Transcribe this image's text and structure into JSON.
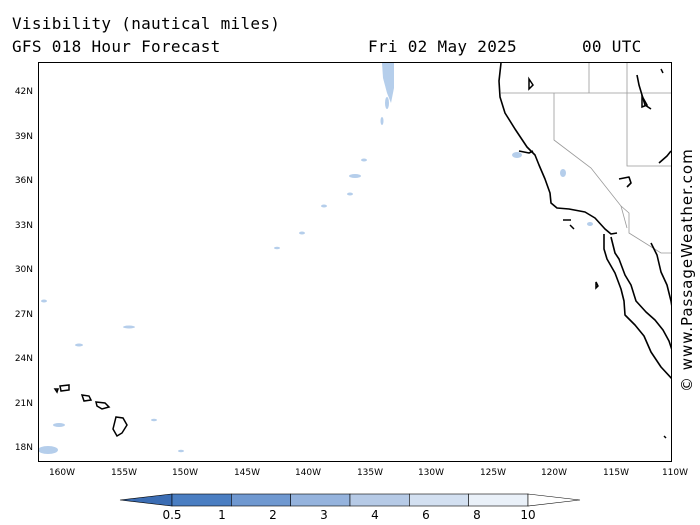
{
  "header": {
    "title": "Visibility (nautical miles)",
    "model": "GFS 018 Hour Forecast",
    "date": "Fri 02 May 2025",
    "time": "00 UTC"
  },
  "credit": "© www.PassageWeather.com",
  "map": {
    "lat_labels": [
      "42N",
      "39N",
      "36N",
      "33N",
      "30N",
      "27N",
      "24N",
      "21N",
      "18N"
    ],
    "lon_labels": [
      "160W",
      "155W",
      "150W",
      "145W",
      "140W",
      "135W",
      "130W",
      "125W",
      "120W",
      "115W",
      "110W"
    ],
    "land_border_color": "#000000",
    "state_border_color": "#999999",
    "low_visibility_color": "#a9c6e8"
  },
  "colorbar": {
    "labels": [
      "0.5",
      "1",
      "2",
      "3",
      "4",
      "6",
      "8",
      "10"
    ],
    "colors": [
      "#3b6db4",
      "#4a7ec2",
      "#6f98d0",
      "#95b3dd",
      "#b6cae6",
      "#d3e0f1",
      "#eaf1f9",
      "#ffffff"
    ]
  }
}
